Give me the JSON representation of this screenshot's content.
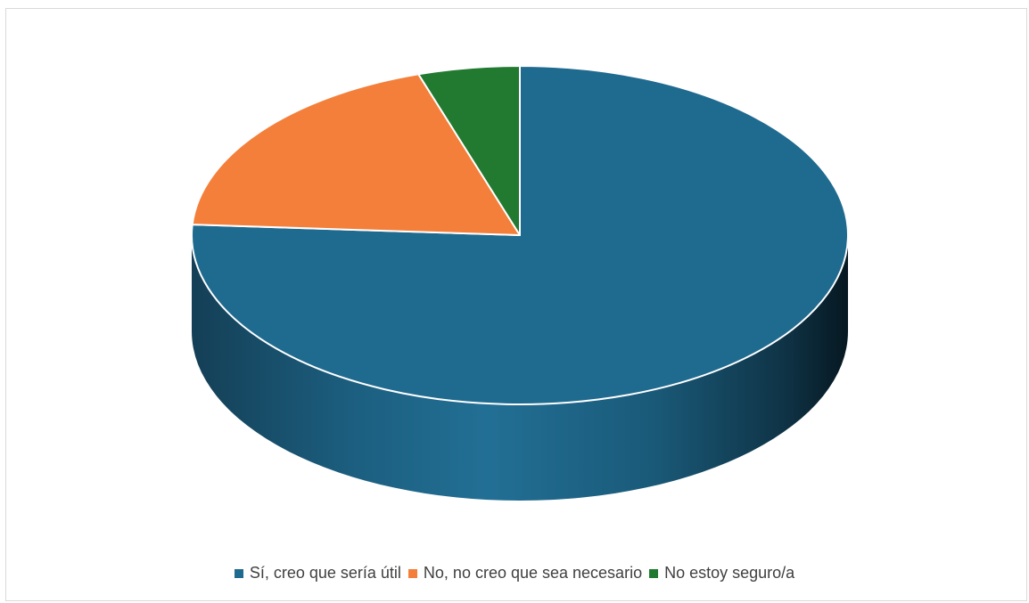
{
  "chart_data": {
    "type": "pie",
    "three_d": true,
    "categories": [
      "Sí, creo que sería útil",
      "No, no creo que sea necesario",
      "No estoy seguro/a"
    ],
    "values": [
      76,
      19,
      5
    ],
    "colors": [
      "#1f6a8f",
      "#f47f3a",
      "#217a30"
    ],
    "legend_position": "bottom"
  }
}
